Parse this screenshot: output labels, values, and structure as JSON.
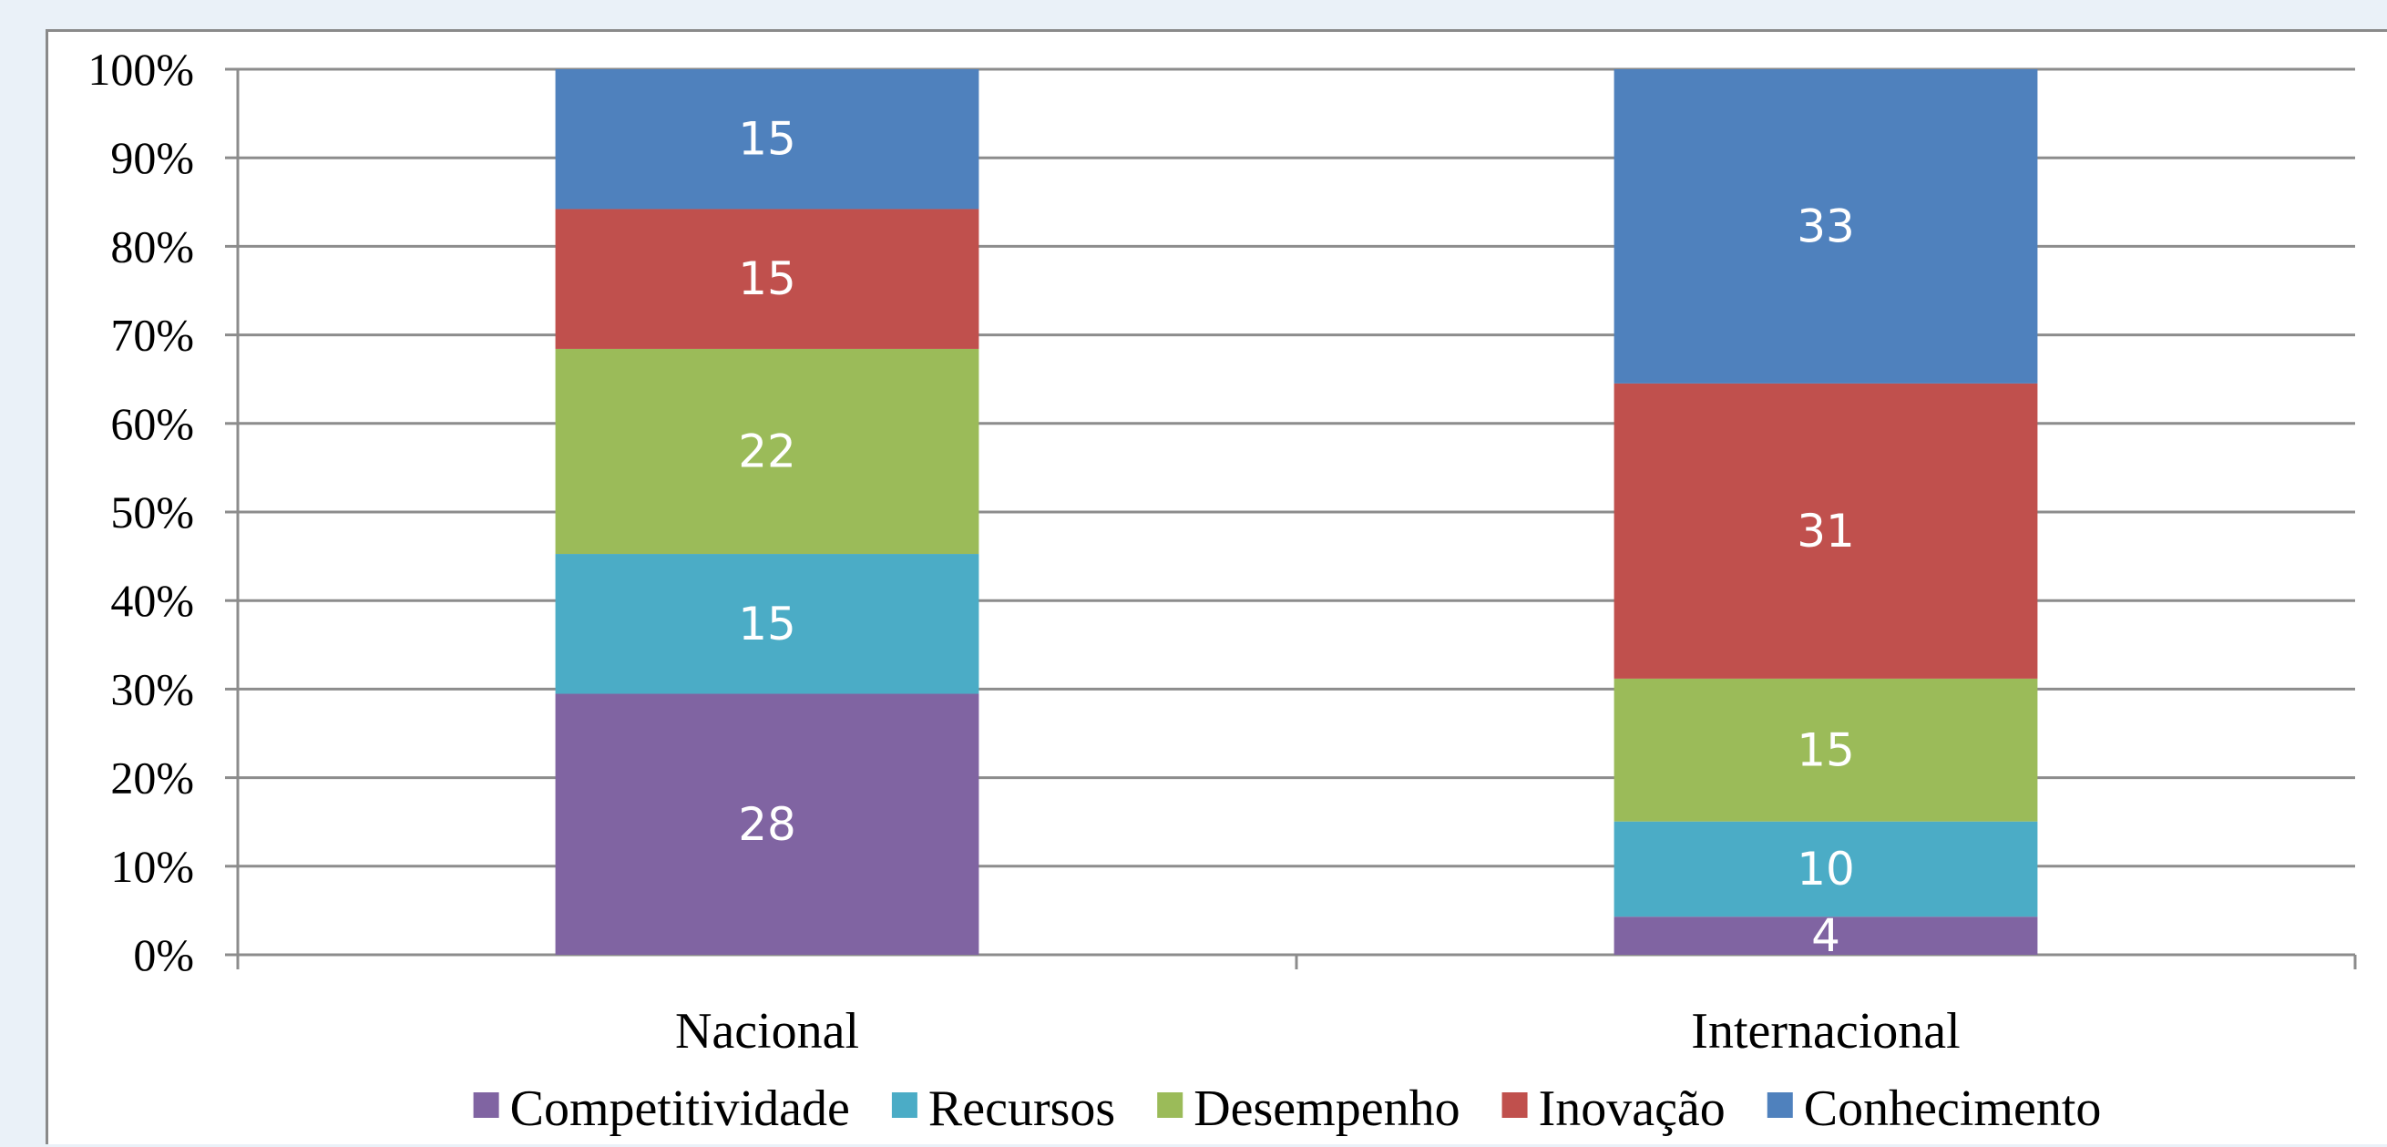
{
  "chart_data": {
    "type": "bar",
    "stacked": true,
    "percent_stacked": true,
    "categories": [
      "Nacional",
      "Internacional"
    ],
    "series": [
      {
        "name": "Competitividade",
        "color": "#8064a2",
        "values": [
          28,
          4
        ]
      },
      {
        "name": "Recursos",
        "color": "#4bacc6",
        "values": [
          15,
          10
        ]
      },
      {
        "name": "Desempenho",
        "color": "#9bbb59",
        "values": [
          22,
          15
        ]
      },
      {
        "name": "Inovação",
        "color": "#c0504d",
        "values": [
          15,
          31
        ]
      },
      {
        "name": "Conhecimento",
        "color": "#4f81bd",
        "values": [
          15,
          33
        ]
      }
    ],
    "y_ticks": [
      "0%",
      "10%",
      "20%",
      "30%",
      "40%",
      "50%",
      "60%",
      "70%",
      "80%",
      "90%",
      "100%"
    ],
    "ylim": [
      0,
      100
    ],
    "grid": true,
    "legend_position": "bottom",
    "title": "",
    "xlabel": "",
    "ylabel": ""
  }
}
